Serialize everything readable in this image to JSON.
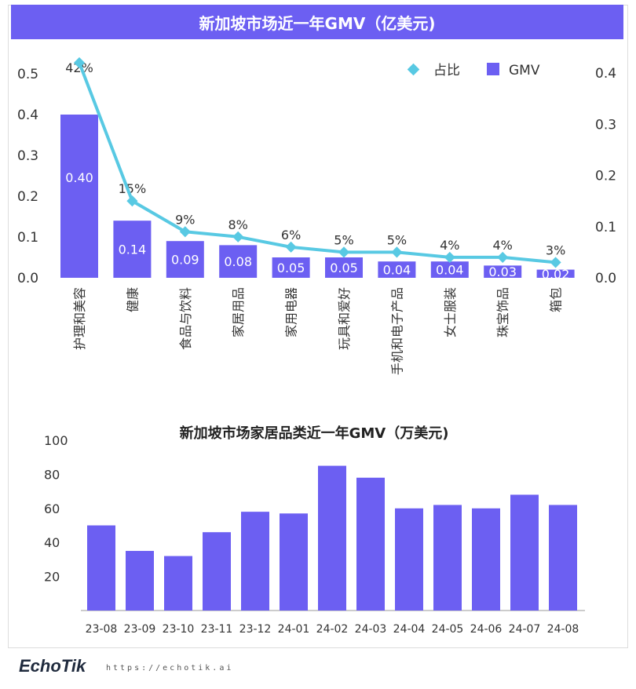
{
  "header": {
    "title": "新加坡市场近一年GMV（亿美元)"
  },
  "chart_data": [
    {
      "type": "bar",
      "title": "新加坡市场近一年GMV（亿美元)",
      "categories": [
        "护理和美容",
        "健康",
        "食品与饮料",
        "家居用品",
        "家用电器",
        "玩具和爱好",
        "手机和电子产品",
        "女士服装",
        "珠宝饰品",
        "箱包"
      ],
      "series": [
        {
          "name": "GMV",
          "type": "bar",
          "axis": "left",
          "values": [
            0.4,
            0.14,
            0.09,
            0.08,
            0.05,
            0.05,
            0.04,
            0.04,
            0.03,
            0.02
          ],
          "labels": [
            "0.40",
            "0.14",
            "0.09",
            "0.08",
            "0.05",
            "0.05",
            "0.04",
            "0.04",
            "0.03",
            "0.02"
          ]
        },
        {
          "name": "占比",
          "type": "line",
          "axis": "right",
          "values": [
            0.42,
            0.15,
            0.09,
            0.08,
            0.06,
            0.05,
            0.05,
            0.04,
            0.04,
            0.03
          ],
          "labels": [
            "42%",
            "15%",
            "9%",
            "8%",
            "6%",
            "5%",
            "5%",
            "4%",
            "4%",
            "3%"
          ]
        }
      ],
      "left_axis": {
        "ylim": [
          0,
          0.5
        ],
        "ticks": [
          "0.0",
          "0.1",
          "0.2",
          "0.3",
          "0.4",
          "0.5"
        ]
      },
      "right_axis": {
        "ticks": [
          "0.0",
          "0.1",
          "0.2",
          "0.3",
          "0.4"
        ]
      },
      "legend": {
        "position": "top-right",
        "items": [
          {
            "label": "占比",
            "color": "#58c9e3",
            "marker": "diamond"
          },
          {
            "label": "GMV",
            "color": "#6c5ff2",
            "marker": "square"
          }
        ]
      },
      "colors": {
        "bar": "#6c5ff2",
        "line": "#58c9e3"
      }
    },
    {
      "type": "bar",
      "title": "新加坡市场家居品类近一年GMV（万美元)",
      "categories": [
        "23-08",
        "23-09",
        "23-10",
        "23-11",
        "23-12",
        "24-01",
        "24-02",
        "24-03",
        "24-04",
        "24-05",
        "24-06",
        "24-07",
        "24-08"
      ],
      "values": [
        50,
        35,
        32,
        46,
        58,
        57,
        85,
        78,
        60,
        62,
        60,
        68,
        62
      ],
      "ylim": [
        0,
        100
      ],
      "ticks": [
        "20",
        "40",
        "60",
        "80",
        "100"
      ],
      "colors": {
        "bar": "#6c5ff2"
      }
    }
  ],
  "footer": {
    "logo": "EchoTik",
    "url": "https://echotik.ai"
  }
}
